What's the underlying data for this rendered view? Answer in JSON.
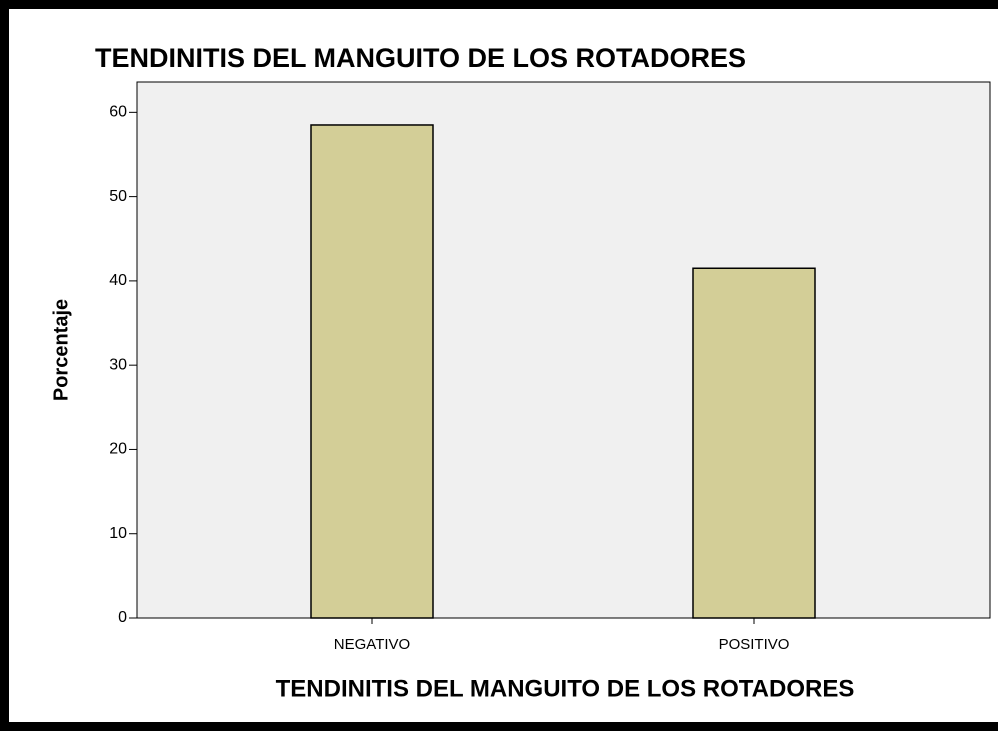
{
  "chart_data": {
    "type": "bar",
    "title": "TENDINITIS DEL MANGUITO DE LOS ROTADORES",
    "x_label": "TENDINITIS DEL MANGUITO DE LOS ROTADORES",
    "y_label": "Porcentaje",
    "categories": [
      "NEGATIVO",
      "POSITIVO"
    ],
    "values": [
      58.5,
      41.5
    ],
    "color": "#d3ce97",
    "ylim": [
      0,
      63.6
    ],
    "yticks": [
      0,
      10,
      20,
      30,
      40,
      50,
      60
    ],
    "grid": false
  }
}
